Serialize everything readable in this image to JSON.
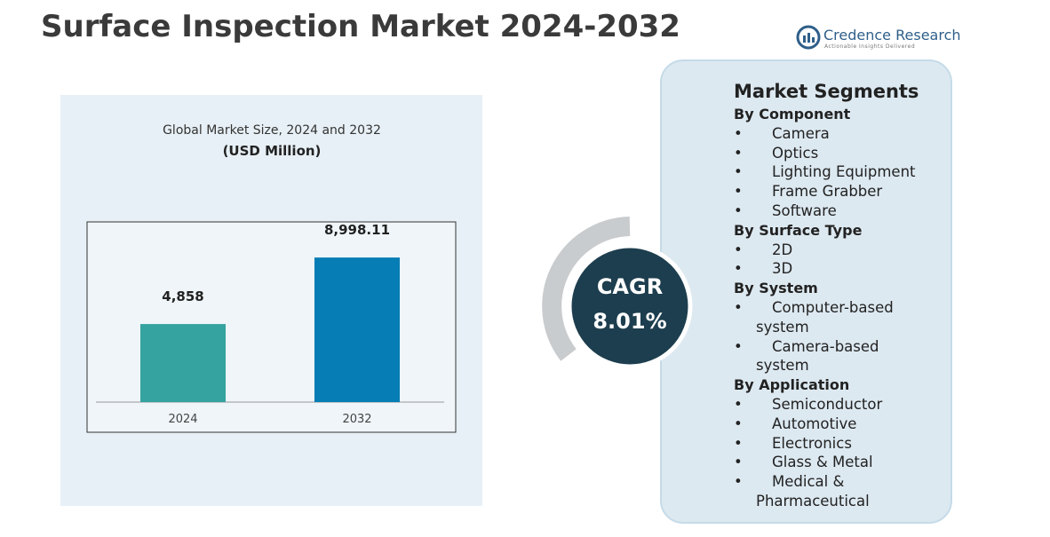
{
  "header": {
    "title": "Surface Inspection Market 2024-2032",
    "brand": "Credence Research",
    "tagline": "Actionable Insights Delivered"
  },
  "chart_data": {
    "type": "bar",
    "title": "Global Market Size, 2024 and 2032",
    "subtitle": "(USD Million)",
    "categories": [
      "2024",
      "2032"
    ],
    "values": [
      4858,
      8998.11
    ],
    "value_labels": [
      "4,858",
      "8,998.11"
    ],
    "colors": [
      "#35a39f",
      "#067db4"
    ],
    "ylim": [
      0,
      10000
    ]
  },
  "cagr": {
    "label": "CAGR",
    "value": "8.01%"
  },
  "segments": {
    "title": "Market Segments",
    "groups": [
      {
        "name": "By Component",
        "items": [
          "Camera",
          "Optics",
          "Lighting Equipment",
          "Frame Grabber",
          "Software"
        ]
      },
      {
        "name": "By Surface Type",
        "items": [
          "2D",
          "3D"
        ]
      },
      {
        "name": "By System",
        "items": [
          "Computer-based system",
          "Camera-based system"
        ]
      },
      {
        "name": "By Application",
        "items": [
          "Semiconductor",
          "Automotive",
          "Electronics",
          "Glass & Metal",
          "Medical & Pharmaceutical"
        ]
      }
    ]
  }
}
